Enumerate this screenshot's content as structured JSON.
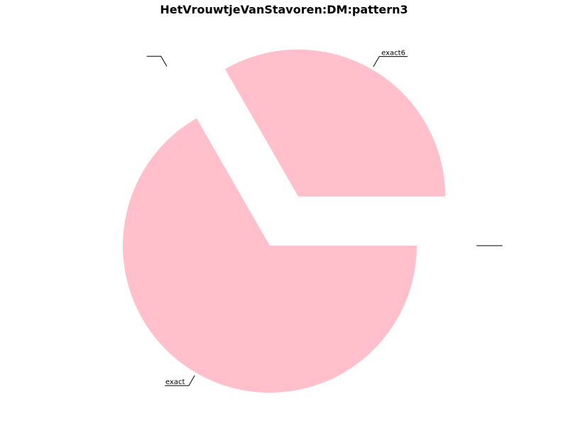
{
  "chart_data": {
    "type": "pie",
    "title": "HetVrouwtjeVanStavoren:DM:pattern3",
    "slices": [
      {
        "label": "exact6",
        "value": 33.3,
        "color": "#ffc0cb",
        "exploded": true
      },
      {
        "label": "",
        "value": 0,
        "color": "#ffc0cb",
        "exploded": true
      },
      {
        "label": "exact",
        "value": 66.7,
        "color": "#ffc0cb",
        "exploded": false
      },
      {
        "label": "",
        "value": 0,
        "color": "#ffc0cb",
        "exploded": true
      }
    ],
    "legend": "none"
  }
}
